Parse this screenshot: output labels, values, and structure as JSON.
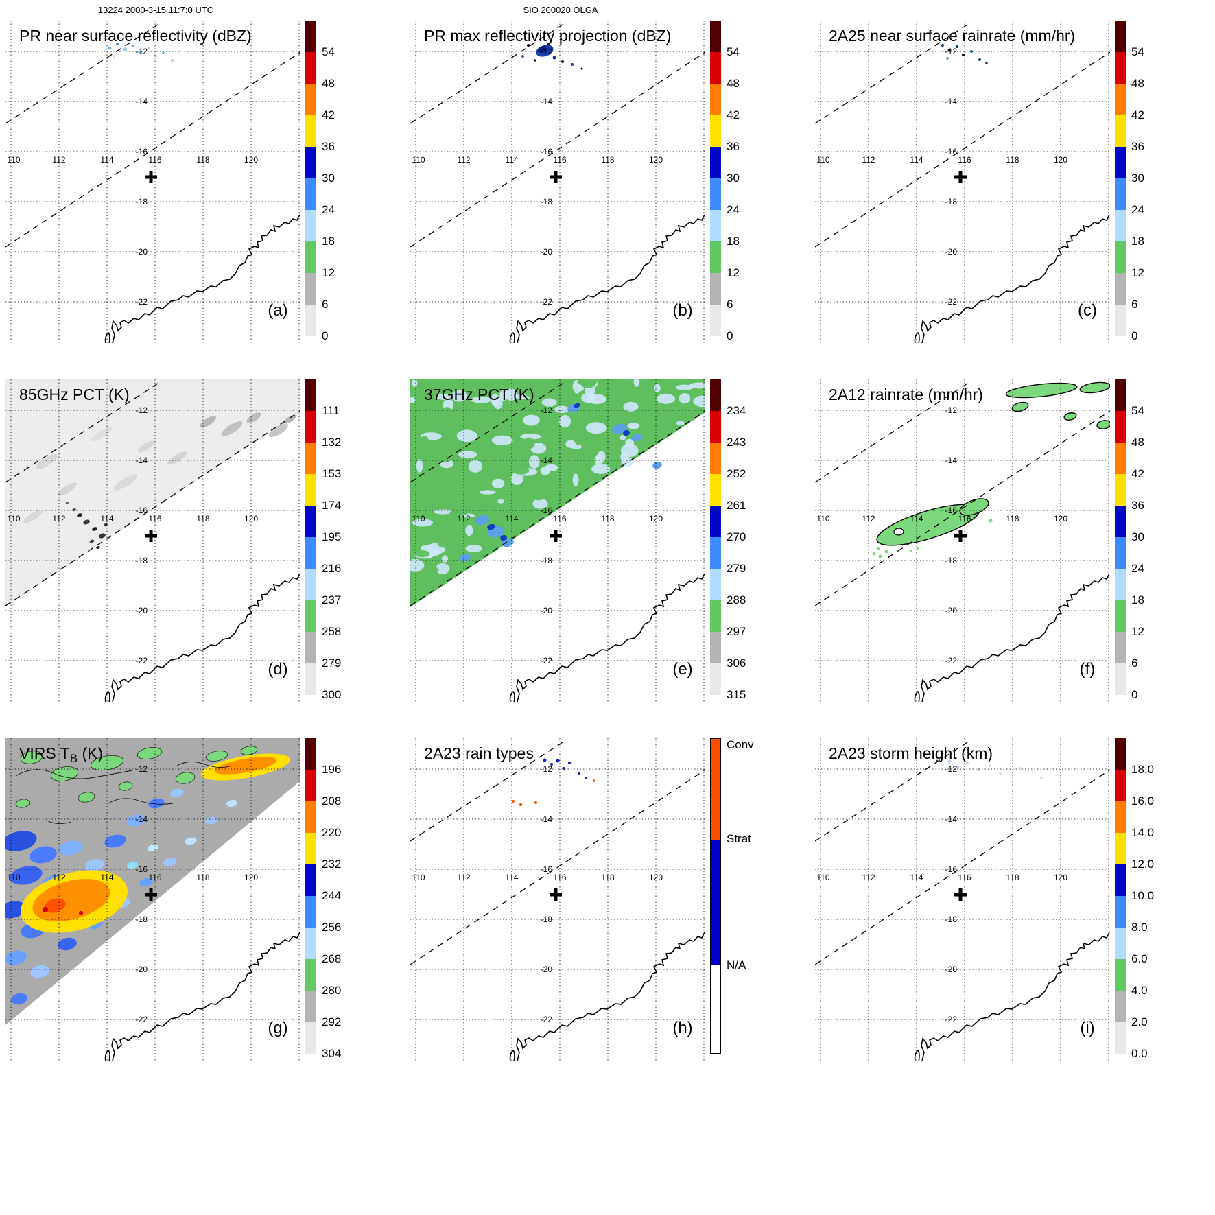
{
  "figure": {
    "header_left": "13224 2000-3-15 11:7:0 UTC",
    "header_center": "SIO 200020 OLGA"
  },
  "map": {
    "lon_labels": [
      "110",
      "112",
      "114",
      "116",
      "118",
      "120"
    ],
    "lat_labels": [
      "-12",
      "-14",
      "-16",
      "-18",
      "-20",
      "-22"
    ],
    "center_marker": {
      "lon": 115.8,
      "lat": -17.0
    }
  },
  "chart_data": {
    "type": "heatmap",
    "description": "TRMM orbit 13224 overpass of SIO 200020 OLGA at 2000-3-15 11:7:0 UTC. Nine geographic panels (110E-122E, 11S-23.5S, NW Australia coastline) showing PR, TMI, VIRS and 2A23 products, each with its own color bar. Dashed lines mark the PR swath edges; a bold cross marks the storm center near 115.8E, 17S.",
    "panels": [
      {
        "id": "a",
        "label": "(a)",
        "header": "13224 2000-3-15 11:7:0 UTC",
        "title": "PR near surface reflectivity (dBZ)",
        "colorbar": "reflectivity",
        "field": "specks_blue",
        "field_description": "A few weak (18-30 dBZ) near-surface echo pixels near 11.5S, 114-116E; rest of swath echo-free."
      },
      {
        "id": "b",
        "label": "(b)",
        "header": "SIO 200020 OLGA",
        "title": "PR max reflectivity projection (dBZ)",
        "colorbar": "reflectivity",
        "field": "blob_blue",
        "field_description": "Small cluster of 30-40 dBZ max-reflectivity pixels near 11.5S, 115E with scattered weaker/dark echoes."
      },
      {
        "id": "c",
        "label": "(c)",
        "header": "",
        "title": "2A25 near surface rainrate (mm/hr)",
        "colorbar": "rainrate",
        "field": "specks_dark",
        "field_description": "Isolated light rain-rate pixels near 11.5S, 114.5-116E."
      },
      {
        "id": "d",
        "label": "(d)",
        "header": "",
        "title": "85GHz PCT (K)",
        "colorbar": "pct85",
        "field": "swath_gray",
        "field_description": "TMI swath (upper-left triangle) mostly 258-300 K (light gray); scattered ice-scattering depressions (dark spots, <240 K) near 15-16S, 112.5-114E and smudges toward the swath edge."
      },
      {
        "id": "e",
        "label": "(e)",
        "header": "",
        "title": "37GHz PCT (K)",
        "colorbar": "pct37",
        "field": "swath_37",
        "field_description": "TMI swath with warm background (~288-297 K, green) mottled by 270-282 K pixels (light blue); deeper blue depressions near 15-16S, 113-114E."
      },
      {
        "id": "f",
        "label": "(f)",
        "header": "",
        "title": "2A12 rainrate (mm/hr)",
        "colorbar": "rainrate",
        "field": "green_patches",
        "field_description": "Light TMI rain (<6 mm/hr, green with black outline) in an elongated band near 15-16.5S, 112.5-115.5E and along 11-12S, 117-122E."
      },
      {
        "id": "g",
        "label": "(g)",
        "header": "",
        "title": "VIRS T_B (K)",
        "colorbar": "virs",
        "field": "swath_virs",
        "field_description": "VIRS IR brightness temperature: warm gray/green (>268 K) to the northeast, widespread cold cloud (blue, 232-256 K) lower-left, and very cold tops (orange/yellow, ~200-220 K) near 15-17S, 111-114E and along 11-12S, 117-119E."
      },
      {
        "id": "h",
        "label": "(h)",
        "header": "",
        "title": "2A23 rain types",
        "colorbar": "raintype",
        "field": "specks_mixed",
        "field_description": "Mostly stratiform (blue) rain-type pixels with a few convective (orange) pixels near 11.5-12.5S, 114-116E."
      },
      {
        "id": "i",
        "label": "(i)",
        "header": "",
        "title": "2A23 storm height (km)",
        "colorbar": "stormheight",
        "field": "specks_faint",
        "field_description": "Scattered shallow storm heights (~2-6 km, faint pale pixels) near 11-12S, 114-117E."
      }
    ],
    "colorbars": {
      "reflectivity": {
        "units": "dBZ",
        "ticks": [
          "54",
          "48",
          "42",
          "36",
          "30",
          "24",
          "18",
          "12",
          "6",
          "0"
        ],
        "segments_top_to_bottom": [
          "#500000",
          "#d80000",
          "#ff7d00",
          "#ffe000",
          "#0008c8",
          "#3c8cff",
          "#b0dcff",
          "#62c862",
          "#b4b4b4",
          "#e8e8e8"
        ]
      },
      "rainrate": {
        "units": "mm/hr",
        "ticks": [
          "54",
          "48",
          "42",
          "36",
          "30",
          "24",
          "18",
          "12",
          "6",
          "0"
        ],
        "segments_top_to_bottom": [
          "#500000",
          "#d80000",
          "#ff7d00",
          "#ffe000",
          "#0008c8",
          "#3c8cff",
          "#b0dcff",
          "#62c862",
          "#b4b4b4",
          "#e8e8e8"
        ]
      },
      "pct85": {
        "units": "K",
        "ticks": [
          "111",
          "132",
          "153",
          "174",
          "195",
          "216",
          "237",
          "258",
          "279",
          "300"
        ],
        "segments_top_to_bottom": [
          "#500000",
          "#d80000",
          "#ff7d00",
          "#ffe000",
          "#0008c8",
          "#3c8cff",
          "#b0dcff",
          "#62c862",
          "#b4b4b4",
          "#e8e8e8"
        ]
      },
      "pct37": {
        "units": "K",
        "ticks": [
          "234",
          "243",
          "252",
          "261",
          "270",
          "279",
          "288",
          "297",
          "306",
          "315"
        ],
        "segments_top_to_bottom": [
          "#500000",
          "#d80000",
          "#ff7d00",
          "#ffe000",
          "#0008c8",
          "#3c8cff",
          "#b0dcff",
          "#62c862",
          "#b4b4b4",
          "#e8e8e8"
        ]
      },
      "virs": {
        "units": "K",
        "ticks": [
          "196",
          "208",
          "220",
          "232",
          "244",
          "256",
          "268",
          "280",
          "292",
          "304"
        ],
        "segments_top_to_bottom": [
          "#500000",
          "#d80000",
          "#ff7d00",
          "#ffe000",
          "#0008c8",
          "#3c8cff",
          "#b0dcff",
          "#62c862",
          "#b4b4b4",
          "#e8e8e8"
        ]
      },
      "stormheight": {
        "units": "km",
        "ticks": [
          "18.0",
          "16.0",
          "14.0",
          "12.0",
          "10.0",
          "8.0",
          "6.0",
          "4.0",
          "2.0",
          "0.0"
        ],
        "segments_top_to_bottom": [
          "#500000",
          "#d80000",
          "#ff7d00",
          "#ffe000",
          "#0008c8",
          "#3c8cff",
          "#b0dcff",
          "#62c862",
          "#b4b4b4",
          "#e8e8e8"
        ]
      },
      "raintype": {
        "labels": [
          "Conv",
          "Strat",
          "N/A"
        ],
        "colors": [
          "#ff4d00",
          "#0000cc",
          "#ffffff"
        ],
        "heights_pct": [
          32,
          40,
          28
        ]
      }
    }
  }
}
